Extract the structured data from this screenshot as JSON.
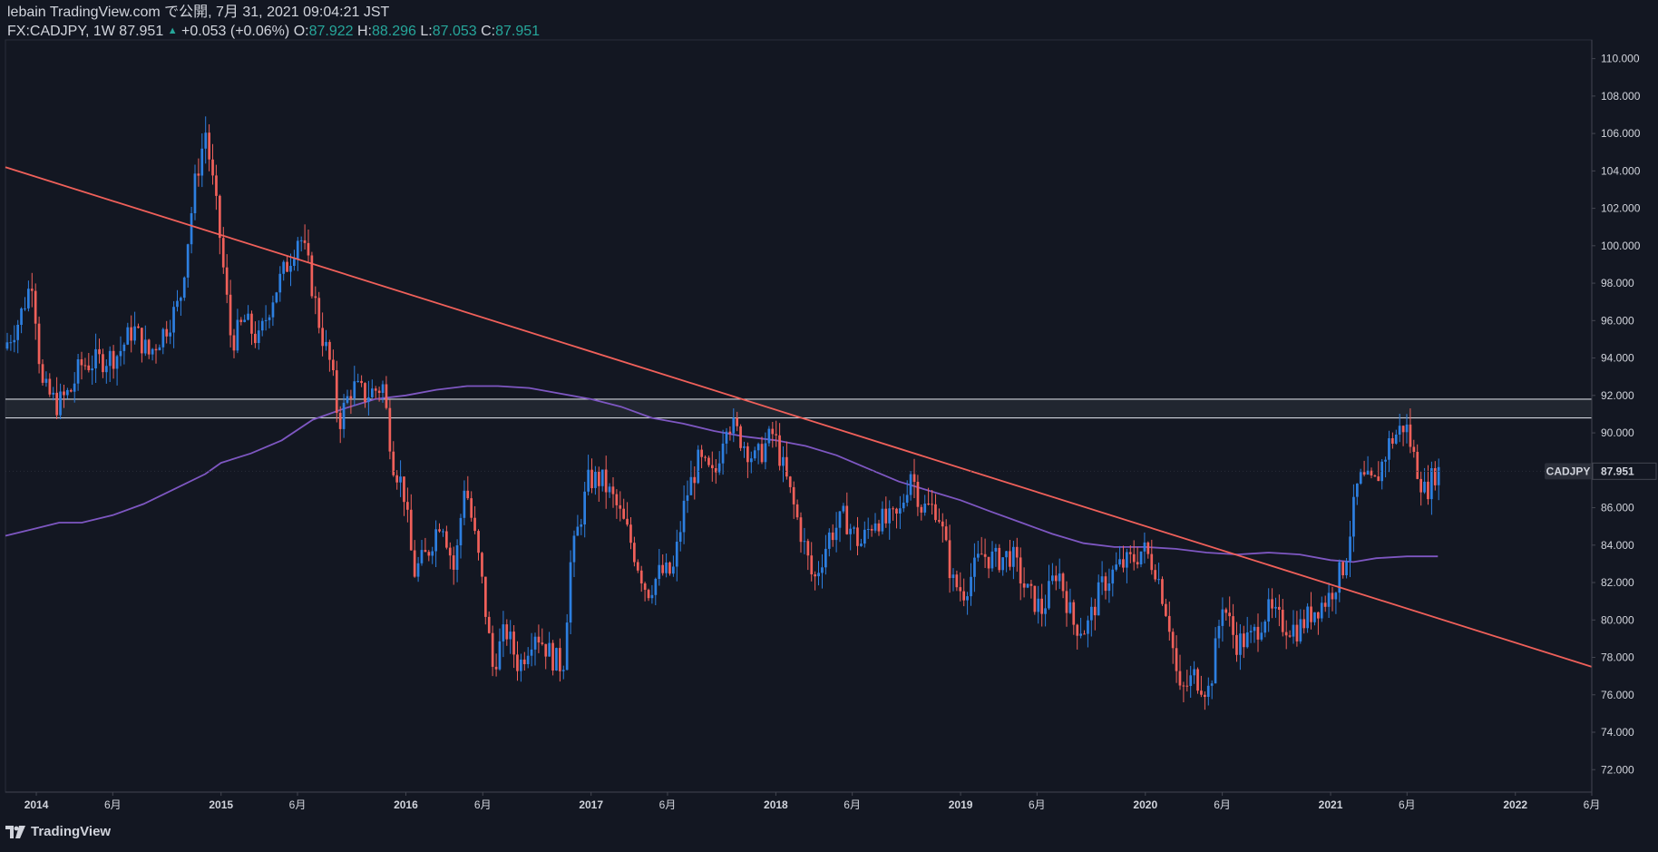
{
  "header": {
    "published": "lebain TradingView.com で公開, 7月 31, 2021 09:04:21 JST",
    "symbol": "FX:CADJPY, 1W 87.951",
    "change": "+0.053 (+0.06%)",
    "o_label": "O:",
    "o_value": "87.922",
    "h_label": "H:",
    "h_value": "88.296",
    "l_label": "L:",
    "l_value": "87.053",
    "c_label": "C:",
    "c_value": "87.951"
  },
  "brand": {
    "name": "TradingView"
  },
  "colors": {
    "background": "#131722",
    "up": "#2d7fe0",
    "down": "#f0605a",
    "ma": "#7e57c2",
    "trendline": "#f0605a",
    "zone": "#d1d4dc",
    "text": "#d1d4dc"
  },
  "chart_data": {
    "type": "candlestick",
    "timeframe": "1W",
    "symbol": "CADJPY",
    "last_price_label": "CADJPY",
    "last_price": "87.951",
    "ylim": [
      70.8,
      111
    ],
    "y_ticks": [
      "110.000",
      "108.000",
      "106.000",
      "104.000",
      "102.000",
      "100.000",
      "98.000",
      "96.000",
      "94.000",
      "92.000",
      "90.000",
      "88.000",
      "86.000",
      "84.000",
      "82.000",
      "80.000",
      "78.000",
      "76.000",
      "74.000",
      "72.000"
    ],
    "x_range": [
      "2013-11-01",
      "2022-06-01"
    ],
    "x_ticks": [
      {
        "label": "2014",
        "date": "2014-01-01"
      },
      {
        "label": "6月",
        "date": "2014-06-01"
      },
      {
        "label": "2015",
        "date": "2015-01-01"
      },
      {
        "label": "6月",
        "date": "2015-06-01"
      },
      {
        "label": "2016",
        "date": "2016-01-01"
      },
      {
        "label": "6月",
        "date": "2016-06-01"
      },
      {
        "label": "2017",
        "date": "2017-01-01"
      },
      {
        "label": "6月",
        "date": "2017-06-01"
      },
      {
        "label": "2018",
        "date": "2018-01-01"
      },
      {
        "label": "6月",
        "date": "2018-06-01"
      },
      {
        "label": "2019",
        "date": "2019-01-01"
      },
      {
        "label": "6月",
        "date": "2019-06-01"
      },
      {
        "label": "2020",
        "date": "2020-01-01"
      },
      {
        "label": "6月",
        "date": "2020-06-01"
      },
      {
        "label": "2021",
        "date": "2021-01-01"
      },
      {
        "label": "6月",
        "date": "2021-06-01"
      },
      {
        "label": "2022",
        "date": "2022-01-01"
      },
      {
        "label": "6月",
        "date": "2022-06-01"
      }
    ],
    "price_path": [
      [
        "2013-11-01",
        94.5
      ],
      [
        "2013-12-01",
        96.0
      ],
      [
        "2013-12-28",
        98.3
      ],
      [
        "2014-01-15",
        92.5
      ],
      [
        "2014-02-15",
        91.5
      ],
      [
        "2014-03-15",
        92.3
      ],
      [
        "2014-04-01",
        93.6
      ],
      [
        "2014-05-15",
        93.9
      ],
      [
        "2014-06-15",
        94.2
      ],
      [
        "2014-07-15",
        95.6
      ],
      [
        "2014-08-15",
        94.2
      ],
      [
        "2014-09-15",
        95.5
      ],
      [
        "2014-10-15",
        97.0
      ],
      [
        "2014-11-15",
        103.5
      ],
      [
        "2014-12-05",
        106.1
      ],
      [
        "2014-12-31",
        101.0
      ],
      [
        "2015-01-25",
        94.8
      ],
      [
        "2015-02-20",
        96.0
      ],
      [
        "2015-03-20",
        94.9
      ],
      [
        "2015-04-15",
        97.2
      ],
      [
        "2015-05-20",
        99.3
      ],
      [
        "2015-06-08",
        100.7
      ],
      [
        "2015-06-25",
        99.0
      ],
      [
        "2015-07-20",
        95.5
      ],
      [
        "2015-08-10",
        93.5
      ],
      [
        "2015-08-25",
        90.5
      ],
      [
        "2015-09-20",
        92.5
      ],
      [
        "2015-10-15",
        92.0
      ],
      [
        "2015-11-20",
        92.5
      ],
      [
        "2015-12-10",
        88.5
      ],
      [
        "2015-12-31",
        87.0
      ],
      [
        "2016-01-20",
        82.5
      ],
      [
        "2016-02-15",
        83.5
      ],
      [
        "2016-03-15",
        85.6
      ],
      [
        "2016-04-10",
        82.5
      ],
      [
        "2016-04-30",
        87.5
      ],
      [
        "2016-05-30",
        82.8
      ],
      [
        "2016-06-24",
        77.5
      ],
      [
        "2016-07-20",
        79.5
      ],
      [
        "2016-08-15",
        77.5
      ],
      [
        "2016-09-15",
        79.5
      ],
      [
        "2016-10-20",
        78.0
      ],
      [
        "2016-11-10",
        77.5
      ],
      [
        "2016-11-25",
        83.0
      ],
      [
        "2016-12-31",
        87.5
      ],
      [
        "2017-01-25",
        87.5
      ],
      [
        "2017-02-20",
        86.3
      ],
      [
        "2017-03-20",
        84.5
      ],
      [
        "2017-04-25",
        81.5
      ],
      [
        "2017-05-20",
        82.5
      ],
      [
        "2017-06-15",
        82.5
      ],
      [
        "2017-07-10",
        86.5
      ],
      [
        "2017-08-05",
        88.5
      ],
      [
        "2017-09-05",
        87.5
      ],
      [
        "2017-09-28",
        90.8
      ],
      [
        "2017-10-25",
        89.8
      ],
      [
        "2017-11-25",
        88.5
      ],
      [
        "2017-12-31",
        90.0
      ],
      [
        "2018-01-20",
        88.0
      ],
      [
        "2018-02-20",
        85.0
      ],
      [
        "2018-03-20",
        82.0
      ],
      [
        "2018-04-20",
        84.5
      ],
      [
        "2018-05-20",
        85.5
      ],
      [
        "2018-06-20",
        84.0
      ],
      [
        "2018-07-20",
        85.5
      ],
      [
        "2018-08-10",
        85.2
      ],
      [
        "2018-09-05",
        85.5
      ],
      [
        "2018-09-28",
        88.0
      ],
      [
        "2018-10-20",
        86.0
      ],
      [
        "2018-11-20",
        86.0
      ],
      [
        "2018-12-20",
        82.0
      ],
      [
        "2019-01-10",
        81.5
      ],
      [
        "2019-02-15",
        83.5
      ],
      [
        "2019-03-15",
        83.2
      ],
      [
        "2019-04-15",
        83.5
      ],
      [
        "2019-05-15",
        81.5
      ],
      [
        "2019-06-15",
        80.5
      ],
      [
        "2019-07-15",
        82.8
      ],
      [
        "2019-08-15",
        79.8
      ],
      [
        "2019-09-10",
        79.5
      ],
      [
        "2019-10-10",
        81.8
      ],
      [
        "2019-11-10",
        82.8
      ],
      [
        "2019-12-10",
        83.2
      ],
      [
        "2019-12-31",
        83.8
      ],
      [
        "2020-01-25",
        82.8
      ],
      [
        "2020-02-20",
        80.0
      ],
      [
        "2020-03-12",
        76.0
      ],
      [
        "2020-04-10",
        77.0
      ],
      [
        "2020-05-10",
        76.2
      ],
      [
        "2020-06-05",
        81.0
      ],
      [
        "2020-07-01",
        78.8
      ],
      [
        "2020-08-01",
        79.0
      ],
      [
        "2020-09-01",
        80.5
      ],
      [
        "2020-10-01",
        79.8
      ],
      [
        "2020-11-01",
        79.5
      ],
      [
        "2020-12-01",
        80.5
      ],
      [
        "2020-12-31",
        81.2
      ],
      [
        "2021-02-01",
        83.0
      ],
      [
        "2021-03-01",
        87.5
      ],
      [
        "2021-04-01",
        87.2
      ],
      [
        "2021-05-01",
        89.5
      ],
      [
        "2021-06-01",
        90.5
      ],
      [
        "2021-06-20",
        88.5
      ],
      [
        "2021-07-10",
        86.8
      ],
      [
        "2021-07-31",
        87.95
      ]
    ],
    "ma": {
      "color": "#7e57c2",
      "points": [
        [
          "2013-11-01",
          84.5
        ],
        [
          "2014-01-01",
          84.9
        ],
        [
          "2014-02-15",
          85.2
        ],
        [
          "2014-04-01",
          85.2
        ],
        [
          "2014-06-01",
          85.6
        ],
        [
          "2014-08-01",
          86.2
        ],
        [
          "2014-10-01",
          87.0
        ],
        [
          "2014-12-01",
          87.8
        ],
        [
          "2015-01-01",
          88.4
        ],
        [
          "2015-03-01",
          88.9
        ],
        [
          "2015-05-01",
          89.6
        ],
        [
          "2015-07-01",
          90.7
        ],
        [
          "2015-09-01",
          91.3
        ],
        [
          "2015-11-01",
          91.8
        ],
        [
          "2016-01-01",
          92.0
        ],
        [
          "2016-03-01",
          92.3
        ],
        [
          "2016-05-01",
          92.5
        ],
        [
          "2016-07-01",
          92.5
        ],
        [
          "2016-09-01",
          92.4
        ],
        [
          "2016-11-01",
          92.1
        ],
        [
          "2017-01-01",
          91.8
        ],
        [
          "2017-03-01",
          91.4
        ],
        [
          "2017-05-01",
          90.8
        ],
        [
          "2017-07-01",
          90.5
        ],
        [
          "2017-09-01",
          90.1
        ],
        [
          "2017-11-01",
          89.8
        ],
        [
          "2018-01-01",
          89.6
        ],
        [
          "2018-03-01",
          89.3
        ],
        [
          "2018-05-01",
          88.8
        ],
        [
          "2018-07-01",
          88.1
        ],
        [
          "2018-09-01",
          87.4
        ],
        [
          "2018-11-01",
          86.9
        ],
        [
          "2019-01-01",
          86.4
        ],
        [
          "2019-03-01",
          85.8
        ],
        [
          "2019-05-01",
          85.2
        ],
        [
          "2019-07-01",
          84.6
        ],
        [
          "2019-09-01",
          84.1
        ],
        [
          "2019-11-01",
          83.9
        ],
        [
          "2020-01-01",
          83.9
        ],
        [
          "2020-03-01",
          83.8
        ],
        [
          "2020-05-01",
          83.6
        ],
        [
          "2020-07-01",
          83.5
        ],
        [
          "2020-09-01",
          83.6
        ],
        [
          "2020-11-01",
          83.5
        ],
        [
          "2021-01-01",
          83.2
        ],
        [
          "2021-02-15",
          83.1
        ],
        [
          "2021-04-01",
          83.3
        ],
        [
          "2021-06-01",
          83.4
        ],
        [
          "2021-08-01",
          83.4
        ]
      ]
    },
    "trendline": {
      "color": "#f0605a",
      "start": [
        "2013-11-01",
        104.2
      ],
      "end": [
        "2022-06-01",
        77.5
      ]
    },
    "resistance_zone": {
      "low": 90.8,
      "high": 91.8,
      "start": "2013-11-01",
      "end": "2022-06-01"
    },
    "grid": false,
    "legend": "none"
  }
}
